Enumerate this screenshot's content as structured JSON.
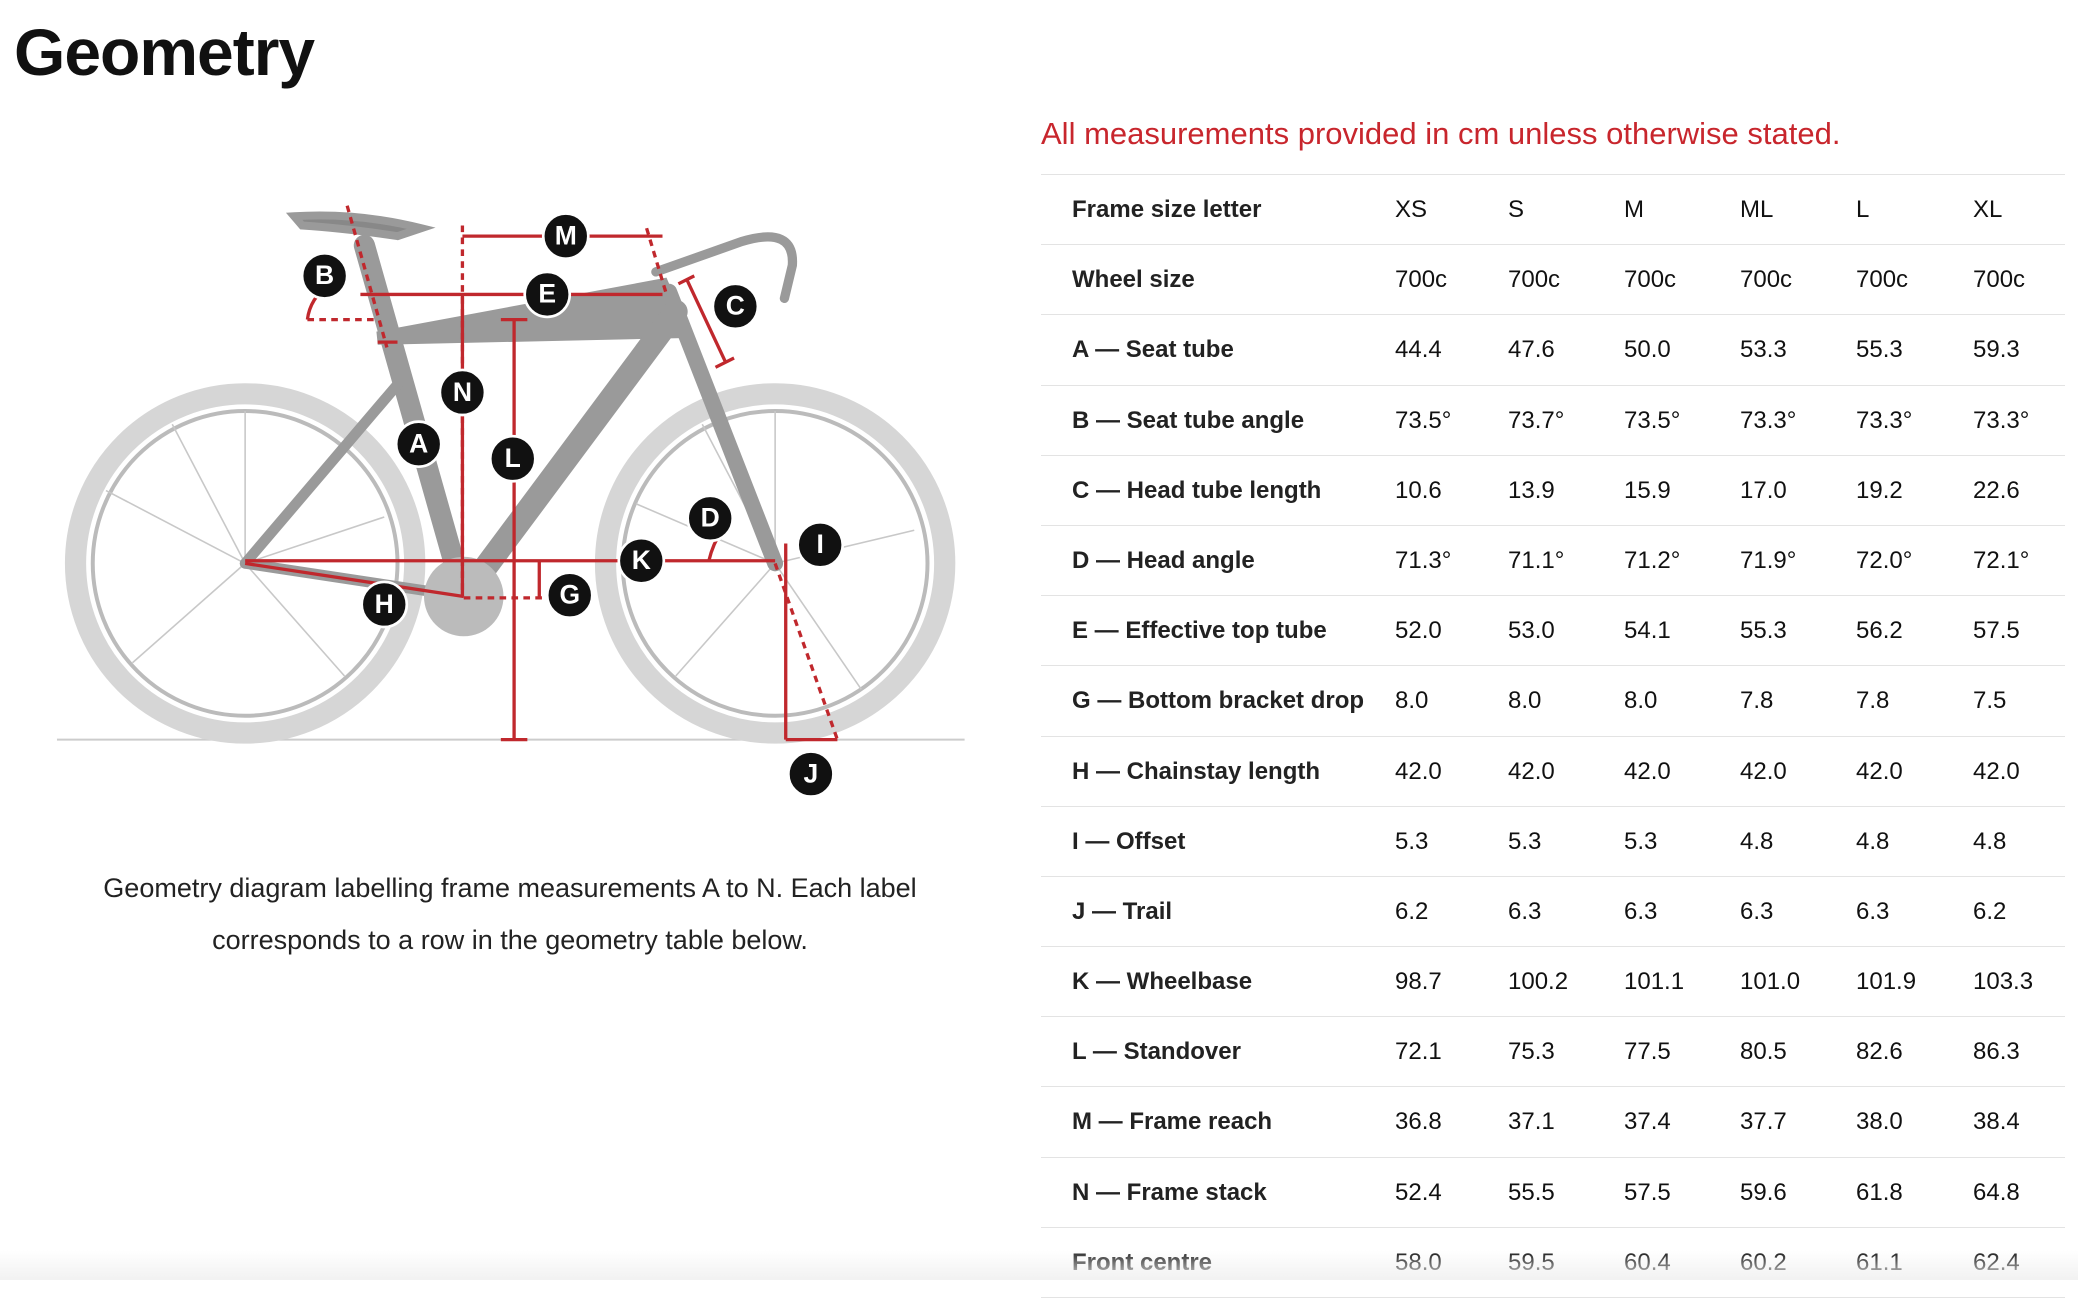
{
  "header": {
    "title": "Geometry"
  },
  "note": "All measurements provided in cm unless otherwise stated.",
  "diagram": {
    "labels": [
      "B",
      "M",
      "E",
      "C",
      "N",
      "A",
      "L",
      "D",
      "K",
      "I",
      "H",
      "G",
      "J"
    ],
    "caption": "Geometry diagram labelling frame measurements A to N. Each label corresponds to a row in the geometry table below."
  },
  "table": {
    "header": [
      "Frame size letter",
      "XS",
      "S",
      "M",
      "ML",
      "L",
      "XL"
    ],
    "rows": [
      [
        "Wheel size",
        "700c",
        "700c",
        "700c",
        "700c",
        "700c",
        "700c"
      ],
      [
        "A — Seat tube",
        "44.4",
        "47.6",
        "50.0",
        "53.3",
        "55.3",
        "59.3"
      ],
      [
        "B — Seat tube angle",
        "73.5°",
        "73.7°",
        "73.5°",
        "73.3°",
        "73.3°",
        "73.3°"
      ],
      [
        "C — Head tube length",
        "10.6",
        "13.9",
        "15.9",
        "17.0",
        "19.2",
        "22.6"
      ],
      [
        "D — Head angle",
        "71.3°",
        "71.1°",
        "71.2°",
        "71.9°",
        "72.0°",
        "72.1°"
      ],
      [
        "E — Effective top tube",
        "52.0",
        "53.0",
        "54.1",
        "55.3",
        "56.2",
        "57.5"
      ],
      [
        "G — Bottom bracket drop",
        "8.0",
        "8.0",
        "8.0",
        "7.8",
        "7.8",
        "7.5"
      ],
      [
        "H — Chainstay length",
        "42.0",
        "42.0",
        "42.0",
        "42.0",
        "42.0",
        "42.0"
      ],
      [
        "I — Offset",
        "5.3",
        "5.3",
        "5.3",
        "4.8",
        "4.8",
        "4.8"
      ],
      [
        "J — Trail",
        "6.2",
        "6.3",
        "6.3",
        "6.3",
        "6.3",
        "6.2"
      ],
      [
        "K — Wheelbase",
        "98.7",
        "100.2",
        "101.1",
        "101.0",
        "101.9",
        "103.3"
      ],
      [
        "L — Standover",
        "72.1",
        "75.3",
        "77.5",
        "80.5",
        "82.6",
        "86.3"
      ],
      [
        "M — Frame reach",
        "36.8",
        "37.1",
        "37.4",
        "37.7",
        "38.0",
        "38.4"
      ],
      [
        "N — Frame stack",
        "52.4",
        "55.5",
        "57.5",
        "59.6",
        "61.8",
        "64.8"
      ],
      [
        "Front centre",
        "58.0",
        "59.5",
        "60.4",
        "60.2",
        "61.1",
        "62.4"
      ]
    ]
  }
}
